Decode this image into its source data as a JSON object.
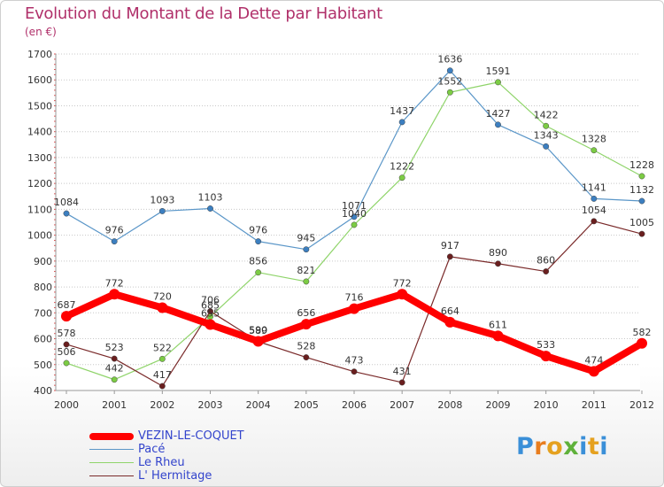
{
  "title": "Evolution du Montant de la Dette par Habitant",
  "subtitle": "(en €)",
  "logo": {
    "letters": [
      "P",
      "r",
      "o",
      "x",
      "i",
      "t",
      "i"
    ],
    "colors": [
      "#3a8fd8",
      "#e87d1e",
      "#e5a11f",
      "#5fb13a",
      "#3a8fd8",
      "#e5a11f",
      "#3a8fd8"
    ]
  },
  "chart_data": {
    "type": "line",
    "x": [
      "2000",
      "2001",
      "2002",
      "2003",
      "2004",
      "2005",
      "2006",
      "2007",
      "2008",
      "2009",
      "2010",
      "2011",
      "2012"
    ],
    "ylim": [
      400,
      1700
    ],
    "yticks": [
      "400",
      "500",
      "600",
      "700",
      "800",
      "900",
      "1000",
      "1100",
      "1200",
      "1300",
      "1400",
      "1500",
      "1600",
      "1700"
    ],
    "grid": "horizontal-dotted",
    "series": [
      {
        "name": "Pacé",
        "color": "#5a96c8",
        "marker": "#3c7fc0",
        "values": [
          1084,
          976,
          1093,
          1103,
          976,
          945,
          1071,
          1437,
          1636,
          1427,
          1343,
          1141,
          1132
        ],
        "labels": [
          "1084",
          "976",
          "1093",
          "1103",
          "976",
          "945",
          "1071",
          "1437",
          "1636",
          "1427",
          "1343",
          "1141",
          "1132"
        ]
      },
      {
        "name": "Le Rheu",
        "color": "#8fd46a",
        "marker": "#7ccc44",
        "values": [
          506,
          442,
          522,
          685,
          856,
          821,
          1040,
          1222,
          1552,
          1591,
          1422,
          1328,
          1228
        ],
        "labels": [
          "506",
          "442",
          "522",
          "685",
          "856",
          "821",
          "1040",
          "1222",
          "1552",
          "1591",
          "1422",
          "1328",
          "1228"
        ]
      },
      {
        "name": "L' Hermitage",
        "color": "#7a2a2a",
        "marker": "#6a1f1f",
        "values": [
          578,
          523,
          417,
          706,
          589,
          528,
          473,
          431,
          917,
          890,
          860,
          1054,
          1005
        ],
        "labels": [
          "578",
          "523",
          "417",
          "706",
          "589",
          "528",
          "473",
          "431",
          "917",
          "890",
          "860",
          "1054",
          "1005"
        ]
      },
      {
        "name": "VEZIN-LE-COQUET",
        "color": "#ff0000",
        "marker": "#ff0000",
        "thick": true,
        "values": [
          687,
          772,
          720,
          655,
          590,
          656,
          716,
          772,
          664,
          611,
          533,
          474,
          582
        ],
        "labels": [
          "687",
          "772",
          "720",
          "655",
          "590",
          "656",
          "716",
          "772",
          "664",
          "611",
          "533",
          "474",
          "582"
        ]
      }
    ],
    "legend": [
      "VEZIN-LE-COQUET",
      "Pacé",
      "Le Rheu",
      "L' Hermitage"
    ]
  }
}
